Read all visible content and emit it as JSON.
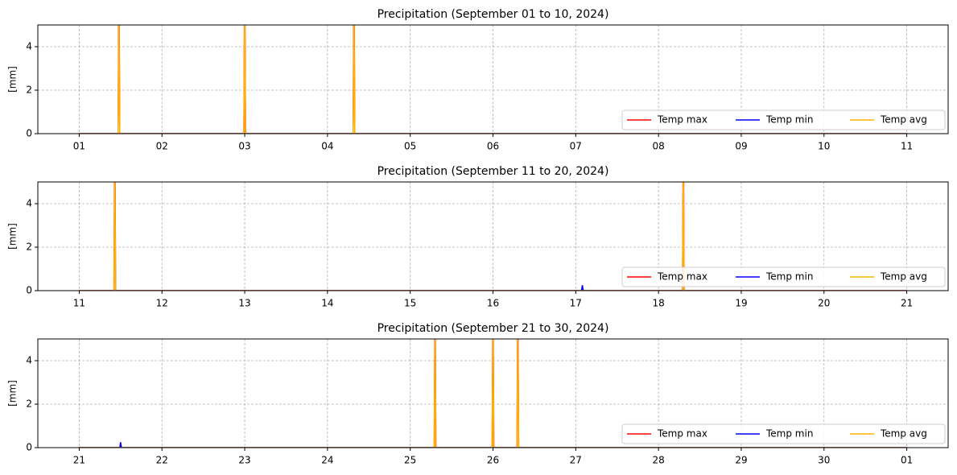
{
  "chart_data": [
    {
      "type": "line",
      "title": "Precipitation  (September 01 to 10, 2024)",
      "y_label": "[mm]",
      "x": [
        1,
        1.47,
        1.48,
        1.49,
        2.99,
        3.0,
        3.01,
        4.31,
        4.32,
        4.33,
        11
      ],
      "series": [
        {
          "name": "Temp max",
          "color": "#ff0000",
          "values": [
            0,
            0,
            8,
            0,
            0,
            8,
            0,
            0,
            8,
            0,
            0
          ]
        },
        {
          "name": "Temp min",
          "color": "#0000ff",
          "values": [
            0,
            0,
            0,
            0,
            0,
            0,
            0,
            0,
            0,
            0,
            0
          ]
        },
        {
          "name": "Temp avg",
          "color": "#ffb000",
          "values": [
            0,
            0,
            6,
            0,
            0,
            6,
            0,
            0,
            6,
            0,
            0
          ]
        }
      ],
      "xlim": [
        0.5,
        11.5
      ],
      "xticks": [
        {
          "value": 1,
          "label": "01"
        },
        {
          "value": 2,
          "label": "02"
        },
        {
          "value": 3,
          "label": "03"
        },
        {
          "value": 4,
          "label": "04"
        },
        {
          "value": 5,
          "label": "05"
        },
        {
          "value": 6,
          "label": "06"
        },
        {
          "value": 7,
          "label": "07"
        },
        {
          "value": 8,
          "label": "08"
        },
        {
          "value": 9,
          "label": "09"
        },
        {
          "value": 10,
          "label": "10"
        },
        {
          "value": 11,
          "label": "11"
        }
      ],
      "ylim": [
        0,
        5
      ],
      "yticks": [
        0,
        2,
        4
      ],
      "grid": true,
      "legend": "lower right"
    },
    {
      "type": "line",
      "title": "Precipitation  (September 11 to 20, 2024)",
      "y_label": "[mm]",
      "x": [
        11,
        11.42,
        11.43,
        11.44,
        17.07,
        17.08,
        17.09,
        18.29,
        18.3,
        18.31,
        21
      ],
      "series": [
        {
          "name": "Temp max",
          "color": "#ff0000",
          "values": [
            0,
            0,
            8,
            0,
            0,
            0,
            0,
            0,
            8,
            0,
            0
          ]
        },
        {
          "name": "Temp min",
          "color": "#0000ff",
          "values": [
            0,
            0,
            0,
            0,
            0,
            0.25,
            0,
            0,
            0,
            0,
            0
          ]
        },
        {
          "name": "Temp avg",
          "color": "#ffb000",
          "values": [
            0,
            0,
            6,
            0,
            0,
            0,
            0,
            0,
            6,
            0,
            0
          ]
        }
      ],
      "xlim": [
        10.5,
        21.5
      ],
      "xticks": [
        11,
        12,
        13,
        14,
        15,
        16,
        17,
        18,
        19,
        20,
        21
      ],
      "ylim": [
        0,
        5
      ],
      "yticks": [
        0,
        2,
        4
      ],
      "grid": true,
      "legend": "lower right"
    },
    {
      "type": "line",
      "title": "Precipitation  (September 21 to 30, 2024)",
      "y_label": "[mm]",
      "x": [
        21,
        21.49,
        21.5,
        21.51,
        25.29,
        25.3,
        25.31,
        25.99,
        26.0,
        26.01,
        26.29,
        26.3,
        26.31,
        31
      ],
      "series": [
        {
          "name": "Temp max",
          "color": "#ff0000",
          "values": [
            0,
            0,
            0,
            0,
            0,
            8,
            0,
            0,
            8,
            0,
            0,
            8,
            0,
            0
          ]
        },
        {
          "name": "Temp min",
          "color": "#0000ff",
          "values": [
            0,
            0,
            0.25,
            0,
            0,
            0,
            0,
            0,
            0,
            0,
            0,
            0,
            0,
            0
          ]
        },
        {
          "name": "Temp avg",
          "color": "#ffb000",
          "values": [
            0,
            0,
            0,
            0,
            0,
            6,
            0,
            0,
            6,
            0,
            0,
            6,
            0,
            0
          ]
        }
      ],
      "xlim": [
        20.5,
        31.5
      ],
      "xticks": [
        21,
        22,
        23,
        24,
        25,
        26,
        27,
        28,
        29,
        30,
        {
          "value": 31,
          "label": "01"
        }
      ],
      "ylim": [
        0,
        5
      ],
      "yticks": [
        0,
        2,
        4
      ],
      "grid": true,
      "legend": "lower right"
    }
  ]
}
